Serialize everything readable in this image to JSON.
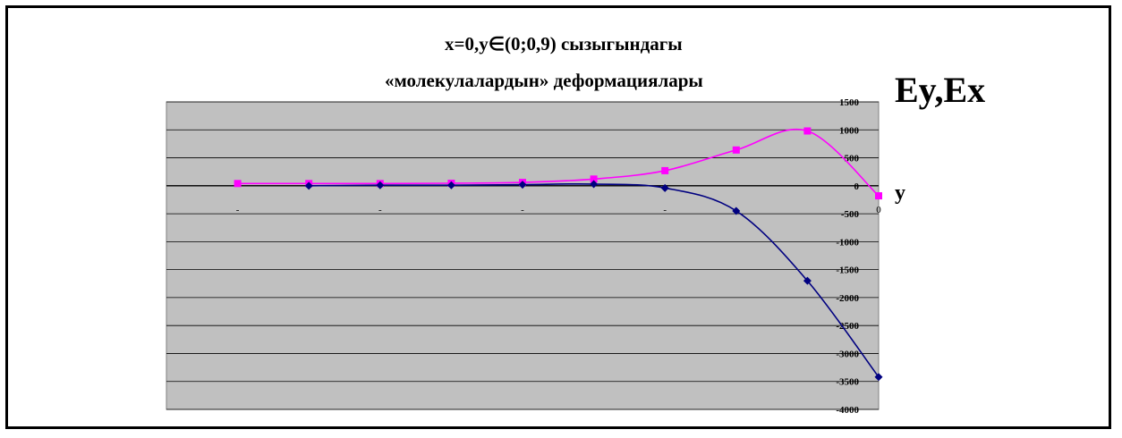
{
  "chart_data": {
    "type": "line",
    "title_lines": [
      "x=0,y∈(0;0,9) сызыгындагы",
      "«молекулалардын» деформациялары"
    ],
    "ylabel": "Ey,Ex",
    "xlabel": "y",
    "ylim": [
      -4000,
      1500
    ],
    "yticks": [
      1500,
      1000,
      500,
      0,
      -500,
      -1000,
      -1500,
      -2000,
      -2500,
      -3000,
      -3500,
      -4000
    ],
    "xtick_labels": [
      "-",
      "-",
      "-",
      "-",
      "0"
    ],
    "grid": true,
    "plot_background": "#c0c0c0",
    "series": [
      {
        "color": "#ff00ff",
        "marker": "square",
        "x": [
          0,
          0.1,
          0.2,
          0.3,
          0.4,
          0.5,
          0.6,
          0.7,
          0.8,
          0.9
        ],
        "values": [
          40,
          40,
          40,
          45,
          60,
          120,
          270,
          640,
          980,
          -180
        ]
      },
      {
        "color": "#000080",
        "marker": "diamond",
        "x": [
          0.1,
          0.2,
          0.3,
          0.4,
          0.5,
          0.6,
          0.7,
          0.8,
          0.9
        ],
        "values": [
          0,
          10,
          10,
          20,
          30,
          -40,
          -450,
          -1700,
          -3420
        ]
      }
    ]
  }
}
